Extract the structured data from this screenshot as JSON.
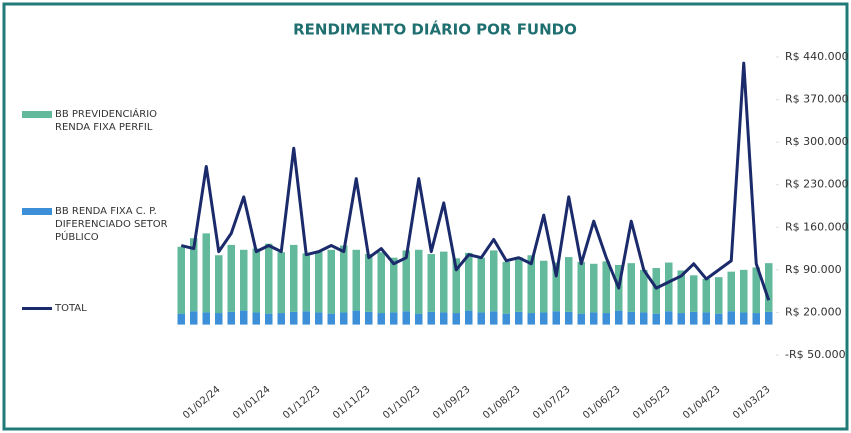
{
  "chart_data": {
    "type": "bar_line",
    "title": "RENDIMENTO DIÁRIO  POR FUNDO",
    "categories": [
      null,
      null,
      null,
      "01/02/24",
      null,
      null,
      null,
      "01/01/24",
      null,
      null,
      null,
      "01/12/23",
      null,
      null,
      null,
      "01/11/23",
      null,
      null,
      null,
      "01/10/23",
      null,
      null,
      null,
      "01/09/23",
      null,
      null,
      null,
      "01/08/23",
      null,
      null,
      null,
      "01/07/23",
      null,
      null,
      null,
      "01/06/23",
      null,
      null,
      null,
      "01/05/23",
      null,
      null,
      null,
      "01/04/23",
      null,
      null,
      null,
      "01/03/23"
    ],
    "series": [
      {
        "name": "BB PREVIDENCIÁRIO RENDA FIXA PERFIL",
        "kind": "bar",
        "color": "#62b99b",
        "values": [
          110000,
          120000,
          130000,
          95000,
          110000,
          100000,
          105000,
          115000,
          100000,
          110000,
          95000,
          100000,
          105000,
          110000,
          100000,
          95000,
          100000,
          90000,
          100000,
          105000,
          95000,
          100000,
          90000,
          95000,
          90000,
          100000,
          85000,
          90000,
          95000,
          85000,
          80000,
          90000,
          85000,
          80000,
          85000,
          75000,
          80000,
          70000,
          75000,
          80000,
          70000,
          60000,
          55000,
          60000,
          65000,
          70000,
          75000,
          80000
        ]
      },
      {
        "name": "BB RENDA FIXA C. P. DIFERENCIADO SETOR PÚBLICO",
        "kind": "bar",
        "color": "#3d8fd8",
        "values": [
          18000,
          22000,
          20000,
          19000,
          21000,
          23000,
          20000,
          18000,
          19000,
          21000,
          22000,
          20000,
          18000,
          20000,
          23000,
          21000,
          19000,
          20000,
          22000,
          18000,
          21000,
          20000,
          19000,
          23000,
          20000,
          22000,
          18000,
          21000,
          19000,
          20000,
          22000,
          21000,
          18000,
          20000,
          19000,
          23000,
          21000,
          20000,
          18000,
          22000,
          19000,
          21000,
          20000,
          18000,
          22000,
          20000,
          19000,
          21000
        ]
      },
      {
        "name": "TOTAL",
        "kind": "line",
        "color": "#1b2a6b",
        "values": [
          130000,
          125000,
          260000,
          120000,
          150000,
          210000,
          120000,
          130000,
          120000,
          290000,
          115000,
          120000,
          130000,
          120000,
          240000,
          110000,
          125000,
          100000,
          110000,
          240000,
          120000,
          200000,
          90000,
          115000,
          110000,
          140000,
          105000,
          110000,
          100000,
          180000,
          80000,
          210000,
          100000,
          170000,
          110000,
          60000,
          170000,
          90000,
          60000,
          70000,
          80000,
          100000,
          75000,
          90000,
          105000,
          430000,
          100000,
          40000
        ]
      }
    ],
    "ylim": [
      -50000,
      440000
    ],
    "yticks": [
      {
        "value": 440000,
        "label": "R$ 440.000"
      },
      {
        "value": 370000,
        "label": "R$ 370.000"
      },
      {
        "value": 300000,
        "label": "R$ 300.000"
      },
      {
        "value": 230000,
        "label": "R$ 230.000"
      },
      {
        "value": 160000,
        "label": "R$ 160.000"
      },
      {
        "value": 90000,
        "label": "R$ 90.000"
      },
      {
        "value": 20000,
        "label": "R$ 20.000"
      },
      {
        "value": -50000,
        "label": "-R$ 50.000"
      }
    ],
    "legend": "left"
  }
}
